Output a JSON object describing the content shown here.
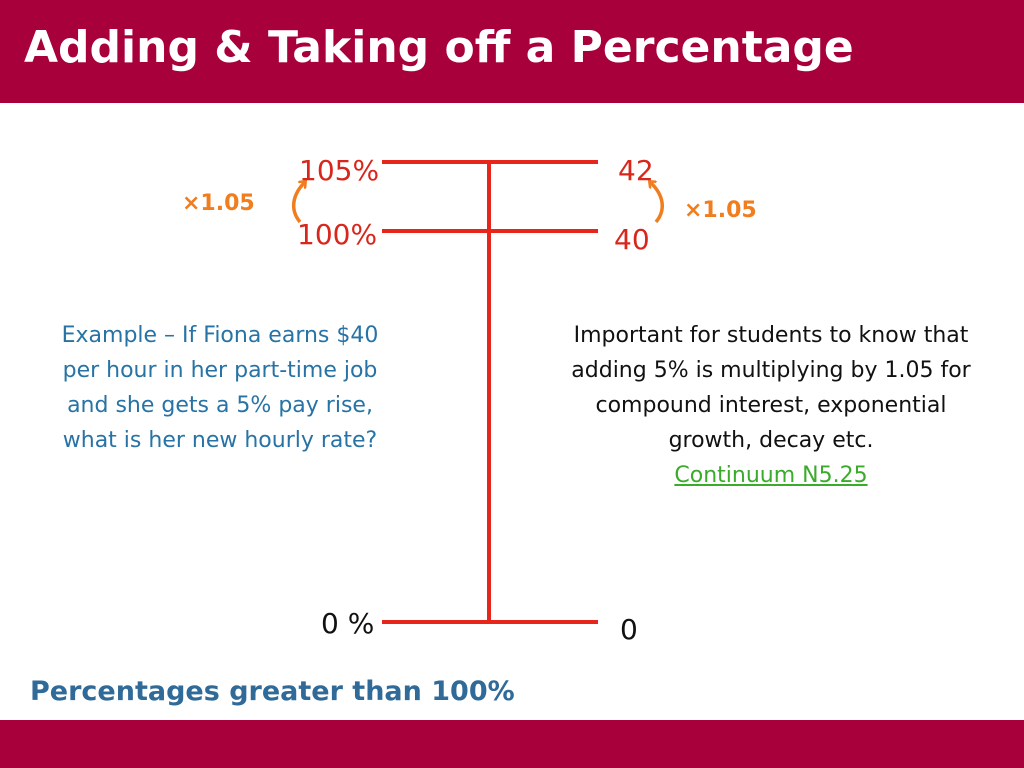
{
  "slide": {
    "title": "Adding & Taking off a Percentage",
    "subtitle": "Percentages greater than 100%"
  },
  "diagram": {
    "left_labels": {
      "top": "105%",
      "middle": "100%",
      "bottom": "0 %"
    },
    "right_labels": {
      "top": "42",
      "middle": "40",
      "bottom": "0"
    },
    "left_multiplier": "×1.05",
    "right_multiplier": "×1.05"
  },
  "example": {
    "text": "Example – If Fiona earns $40 per hour in her part-time job and she gets a 5% pay rise, what is her new hourly rate?"
  },
  "note": {
    "text": "Important for students to know that adding 5% is multiplying by 1.05 for compound interest, exponential growth, decay etc.",
    "link_label": "Continuum N5.25"
  },
  "colors": {
    "brand_bar": "#a8003b",
    "line": "#e8251a",
    "arrow": "#f07d1e",
    "example_text": "#2773a5",
    "link": "#3aab2b",
    "subtitle": "#2f6a98"
  }
}
